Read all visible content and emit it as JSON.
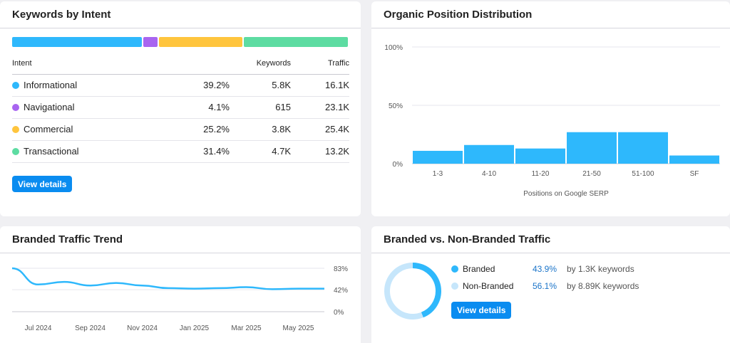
{
  "intent_card": {
    "title": "Keywords by Intent",
    "bar": [
      {
        "name": "Informational",
        "share": 39.2,
        "color": "#2eb8fc"
      },
      {
        "name": "Navigational",
        "share": 4.1,
        "color": "#a865f0"
      },
      {
        "name": "Commercial",
        "share": 25.2,
        "color": "#ffc53d"
      },
      {
        "name": "Transactional",
        "share": 31.4,
        "color": "#5ddca2"
      }
    ],
    "headers": {
      "intent": "Intent",
      "keywords": "Keywords",
      "traffic": "Traffic"
    },
    "rows": [
      {
        "intent": "Informational",
        "pct": "39.2%",
        "keywords": "5.8K",
        "traffic": "16.1K",
        "color": "#2eb8fc"
      },
      {
        "intent": "Navigational",
        "pct": "4.1%",
        "keywords": "615",
        "traffic": "23.1K",
        "color": "#a865f0"
      },
      {
        "intent": "Commercial",
        "pct": "25.2%",
        "keywords": "3.8K",
        "traffic": "25.4K",
        "color": "#ffc53d"
      },
      {
        "intent": "Transactional",
        "pct": "31.4%",
        "keywords": "4.7K",
        "traffic": "13.2K",
        "color": "#5ddca2"
      }
    ],
    "button": "View details"
  },
  "position_card": {
    "title": "Organic Position Distribution",
    "xlabel": "Positions on Google SERP",
    "y_ticks": [
      "100%",
      "50%",
      "0%"
    ]
  },
  "trend_card": {
    "title": "Branded Traffic Trend",
    "y_ticks": [
      "83%",
      "42%",
      "0%"
    ],
    "x_ticks": [
      "Jul 2024",
      "Sep 2024",
      "Nov 2024",
      "Jan 2025",
      "Mar 2025",
      "May 2025"
    ]
  },
  "branded_card": {
    "title": "Branded vs. Non-Branded Traffic",
    "rows": [
      {
        "label": "Branded",
        "pct": "43.9%",
        "desc": "by 1.3K keywords",
        "color": "#2eb8fc"
      },
      {
        "label": "Non-Branded",
        "pct": "56.1%",
        "desc": "by 8.89K keywords",
        "color": "#c6e6fb"
      }
    ],
    "button": "View details"
  },
  "chart_data": [
    {
      "type": "bar",
      "title": "Organic Position Distribution",
      "xlabel": "Positions on Google SERP",
      "ylabel": "",
      "categories": [
        "1-3",
        "4-10",
        "11-20",
        "21-50",
        "51-100",
        "SF"
      ],
      "values": [
        11,
        16,
        13,
        27,
        27,
        7
      ],
      "ylim": [
        0,
        100
      ],
      "y_ticks": [
        "100%",
        "50%",
        "0%"
      ],
      "color": "#2eb8fc",
      "grid": true
    },
    {
      "type": "line",
      "title": "Branded Traffic Trend",
      "x": [
        "Jun 2024",
        "Jul 2024",
        "Aug 2024",
        "Sep 2024",
        "Oct 2024",
        "Nov 2024",
        "Dec 2024",
        "Jan 2025",
        "Feb 2025",
        "Mar 2025",
        "Apr 2025",
        "May 2025",
        "Jun 2025"
      ],
      "values": [
        83,
        52,
        57,
        50,
        55,
        50,
        45,
        44,
        45,
        47,
        43,
        44,
        44
      ],
      "ylim": [
        0,
        83
      ],
      "y_ticks": [
        "83%",
        "42%",
        "0%"
      ],
      "x_ticks": [
        "Jul 2024",
        "Sep 2024",
        "Nov 2024",
        "Jan 2025",
        "Mar 2025",
        "May 2025"
      ],
      "color": "#2eb8fc",
      "grid": true
    },
    {
      "type": "pie",
      "title": "Branded vs. Non-Branded Traffic",
      "labels": [
        "Branded",
        "Non-Branded"
      ],
      "values": [
        43.9,
        56.1
      ],
      "colors": [
        "#2eb8fc",
        "#c6e6fb"
      ]
    }
  ]
}
